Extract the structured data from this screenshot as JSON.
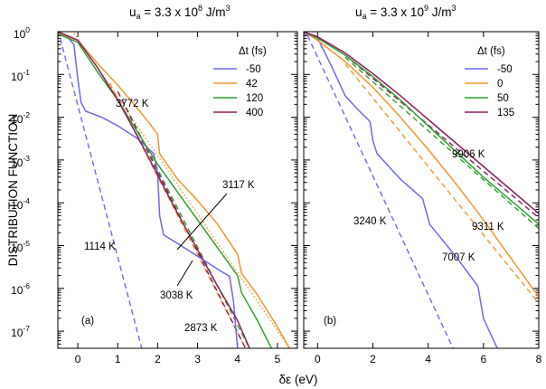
{
  "figure": {
    "ylabel": "DISTRIBUTION FUNCTION",
    "xlabel": "δε (eV)"
  },
  "chart_data": [
    {
      "type": "line",
      "panel_label": "(a)",
      "title_parts": {
        "base": "u",
        "sub": "a",
        "main": " = 3.3 x 10",
        "exp": "8",
        "unit": " J/m",
        "unit_exp": "3"
      },
      "xlim": [
        -0.5,
        5.5
      ],
      "ylim_log10": [
        -7.4,
        0
      ],
      "log_y": true,
      "x_ticks": [
        "0",
        "1",
        "2",
        "3",
        "4",
        "5"
      ],
      "x_tick_values": [
        0,
        1,
        2,
        3,
        4,
        5
      ],
      "y_ticks": [
        {
          "base": "10",
          "exp": "0",
          "v": 0
        },
        {
          "base": "10",
          "exp": "-1",
          "v": -1
        },
        {
          "base": "10",
          "exp": "-2",
          "v": -2
        },
        {
          "base": "10",
          "exp": "-3",
          "v": -3
        },
        {
          "base": "10",
          "exp": "-4",
          "v": -4
        },
        {
          "base": "10",
          "exp": "-5",
          "v": -5
        },
        {
          "base": "10",
          "exp": "-6",
          "v": -6
        },
        {
          "base": "10",
          "exp": "-7",
          "v": -7
        }
      ],
      "legend_title": "Δt (fs)",
      "legend_position": "top-right",
      "series": [
        {
          "name": "-50",
          "color": "#6a6af2",
          "values_log10": [
            [
              -0.5,
              -0.03
            ],
            [
              -0.3,
              -0.08
            ],
            [
              -0.1,
              -0.3
            ],
            [
              0,
              -1.1
            ],
            [
              0.08,
              -1.65
            ],
            [
              0.2,
              -1.86
            ],
            [
              0.6,
              -2.0
            ],
            [
              1.0,
              -2.2
            ],
            [
              1.5,
              -2.5
            ],
            [
              1.9,
              -2.85
            ],
            [
              2.0,
              -3.3
            ],
            [
              2.05,
              -4.3
            ],
            [
              2.15,
              -4.75
            ],
            [
              2.5,
              -4.95
            ],
            [
              3.0,
              -5.25
            ],
            [
              3.5,
              -5.55
            ],
            [
              3.8,
              -5.72
            ],
            [
              3.9,
              -6.3
            ],
            [
              4.0,
              -7.4
            ]
          ]
        },
        {
          "name": "42",
          "color": "#f2962f",
          "values_log10": [
            [
              -0.5,
              -0.03
            ],
            [
              0,
              -0.2
            ],
            [
              0.5,
              -0.75
            ],
            [
              1.0,
              -1.25
            ],
            [
              1.5,
              -1.8
            ],
            [
              1.8,
              -2.15
            ],
            [
              2.0,
              -2.4
            ],
            [
              2.05,
              -2.85
            ],
            [
              2.2,
              -3.05
            ],
            [
              2.5,
              -3.45
            ],
            [
              3.0,
              -3.95
            ],
            [
              3.5,
              -4.5
            ],
            [
              4.0,
              -5.2
            ],
            [
              4.1,
              -5.65
            ],
            [
              4.5,
              -6.15
            ],
            [
              5.0,
              -6.9
            ],
            [
              5.3,
              -7.4
            ]
          ]
        },
        {
          "name": "120",
          "color": "#2fa12f",
          "values_log10": [
            [
              -0.5,
              -0.05
            ],
            [
              0,
              -0.25
            ],
            [
              0.5,
              -0.95
            ],
            [
              1.0,
              -1.6
            ],
            [
              1.5,
              -2.35
            ],
            [
              2.0,
              -3.1
            ],
            [
              2.5,
              -3.75
            ],
            [
              3.0,
              -4.4
            ],
            [
              3.5,
              -5.05
            ],
            [
              4.0,
              -5.7
            ],
            [
              4.1,
              -6.1
            ],
            [
              4.5,
              -6.75
            ],
            [
              4.85,
              -7.4
            ]
          ]
        },
        {
          "name": "400",
          "color": "#8b1f5e",
          "values_log10": [
            [
              -0.5,
              0.0
            ],
            [
              0,
              -0.2
            ],
            [
              0.5,
              -0.85
            ],
            [
              1.0,
              -1.6
            ],
            [
              1.5,
              -2.45
            ],
            [
              2.0,
              -3.35
            ],
            [
              2.5,
              -4.25
            ],
            [
              3.0,
              -5.1
            ],
            [
              3.5,
              -5.95
            ],
            [
              4.0,
              -6.75
            ],
            [
              4.3,
              -7.4
            ]
          ]
        }
      ],
      "fits": [
        {
          "color": "#6a6af2",
          "style": "dashed",
          "values_log10": [
            [
              -0.5,
              0.05
            ],
            [
              1.6,
              -7.4
            ]
          ]
        },
        {
          "color": "#f2962f",
          "style": "dotted",
          "values_log10": [
            [
              -0.2,
              0.1
            ],
            [
              5.3,
              -7.4
            ]
          ]
        },
        {
          "color": "#f2962f",
          "style": "dashed",
          "values_log10": [
            [
              0.8,
              -1.2
            ],
            [
              4.2,
              -7.4
            ]
          ]
        },
        {
          "color": "#2fa12f",
          "style": "dashed",
          "values_log10": [
            [
              1.0,
              -1.4
            ],
            [
              4.3,
              -7.4
            ]
          ]
        },
        {
          "color": "#8b1f5e",
          "style": "dashed",
          "values_log10": [
            [
              1.0,
              -1.4
            ],
            [
              4.2,
              -7.4
            ]
          ]
        }
      ],
      "annotations": [
        "3772 K",
        "1114 K",
        "3117 K",
        "3038 K",
        "2873 K"
      ]
    },
    {
      "type": "line",
      "panel_label": "(b)",
      "title_parts": {
        "base": "u",
        "sub": "a",
        "main": " = 3.3 x 10",
        "exp": "9",
        "unit": " J/m",
        "unit_exp": "3"
      },
      "xlim": [
        -0.5,
        8
      ],
      "ylim_log10": [
        -7.4,
        0
      ],
      "log_y": true,
      "x_ticks": [
        "0",
        "2",
        "4",
        "6",
        "8"
      ],
      "x_tick_values": [
        0,
        2,
        4,
        6,
        8
      ],
      "legend_title": "Δt (fs)",
      "legend_position": "top-right",
      "series": [
        {
          "name": "-50",
          "color": "#6a6af2",
          "values_log10": [
            [
              -0.5,
              -0.05
            ],
            [
              0,
              -0.15
            ],
            [
              0.5,
              -0.8
            ],
            [
              1.0,
              -1.5
            ],
            [
              1.5,
              -1.85
            ],
            [
              1.9,
              -2.1
            ],
            [
              2.0,
              -2.55
            ],
            [
              2.15,
              -2.85
            ],
            [
              3.0,
              -3.45
            ],
            [
              3.8,
              -3.9
            ],
            [
              3.95,
              -4.25
            ],
            [
              4.05,
              -4.5
            ],
            [
              5.0,
              -5.25
            ],
            [
              5.8,
              -5.95
            ],
            [
              6.0,
              -6.7
            ],
            [
              6.5,
              -7.4
            ]
          ]
        },
        {
          "name": "0",
          "color": "#f2962f",
          "values_log10": [
            [
              -0.5,
              0.0
            ],
            [
              0,
              -0.2
            ],
            [
              1,
              -0.7
            ],
            [
              2,
              -1.3
            ],
            [
              3,
              -2.0
            ],
            [
              4,
              -2.75
            ],
            [
              5,
              -3.55
            ],
            [
              6,
              -4.4
            ],
            [
              7,
              -5.3
            ],
            [
              8,
              -6.2
            ]
          ]
        },
        {
          "name": "50",
          "color": "#2fa12f",
          "values_log10": [
            [
              -0.5,
              0.0
            ],
            [
              0,
              -0.15
            ],
            [
              1,
              -0.55
            ],
            [
              2,
              -1.05
            ],
            [
              3,
              -1.6
            ],
            [
              4,
              -2.2
            ],
            [
              5,
              -2.8
            ],
            [
              6,
              -3.4
            ],
            [
              7,
              -3.95
            ],
            [
              8,
              -4.5
            ]
          ]
        },
        {
          "name": "135",
          "color": "#8b1f5e",
          "values_log10": [
            [
              -0.5,
              0.0
            ],
            [
              0,
              -0.12
            ],
            [
              1,
              -0.5
            ],
            [
              2,
              -0.98
            ],
            [
              3,
              -1.5
            ],
            [
              4,
              -2.05
            ],
            [
              5,
              -2.6
            ],
            [
              6,
              -3.15
            ],
            [
              7,
              -3.7
            ],
            [
              8,
              -4.25
            ]
          ]
        }
      ],
      "fits": [
        {
          "color": "#6a6af2",
          "style": "dashed",
          "values_log10": [
            [
              -0.5,
              0.1
            ],
            [
              4.9,
              -7.4
            ]
          ]
        },
        {
          "color": "#f2962f",
          "style": "dashed",
          "values_log10": [
            [
              1.0,
              -0.75
            ],
            [
              8,
              -6.35
            ]
          ]
        },
        {
          "color": "#2fa12f",
          "style": "dashed",
          "values_log10": [
            [
              1.0,
              -0.6
            ],
            [
              8,
              -4.6
            ]
          ]
        },
        {
          "color": "#8b1f5e",
          "style": "dashed",
          "values_log10": [
            [
              1.0,
              -0.55
            ],
            [
              8,
              -4.35
            ]
          ]
        }
      ],
      "annotations": [
        "9906 K",
        "3240 K",
        "9311 K",
        "7007 K"
      ]
    }
  ]
}
